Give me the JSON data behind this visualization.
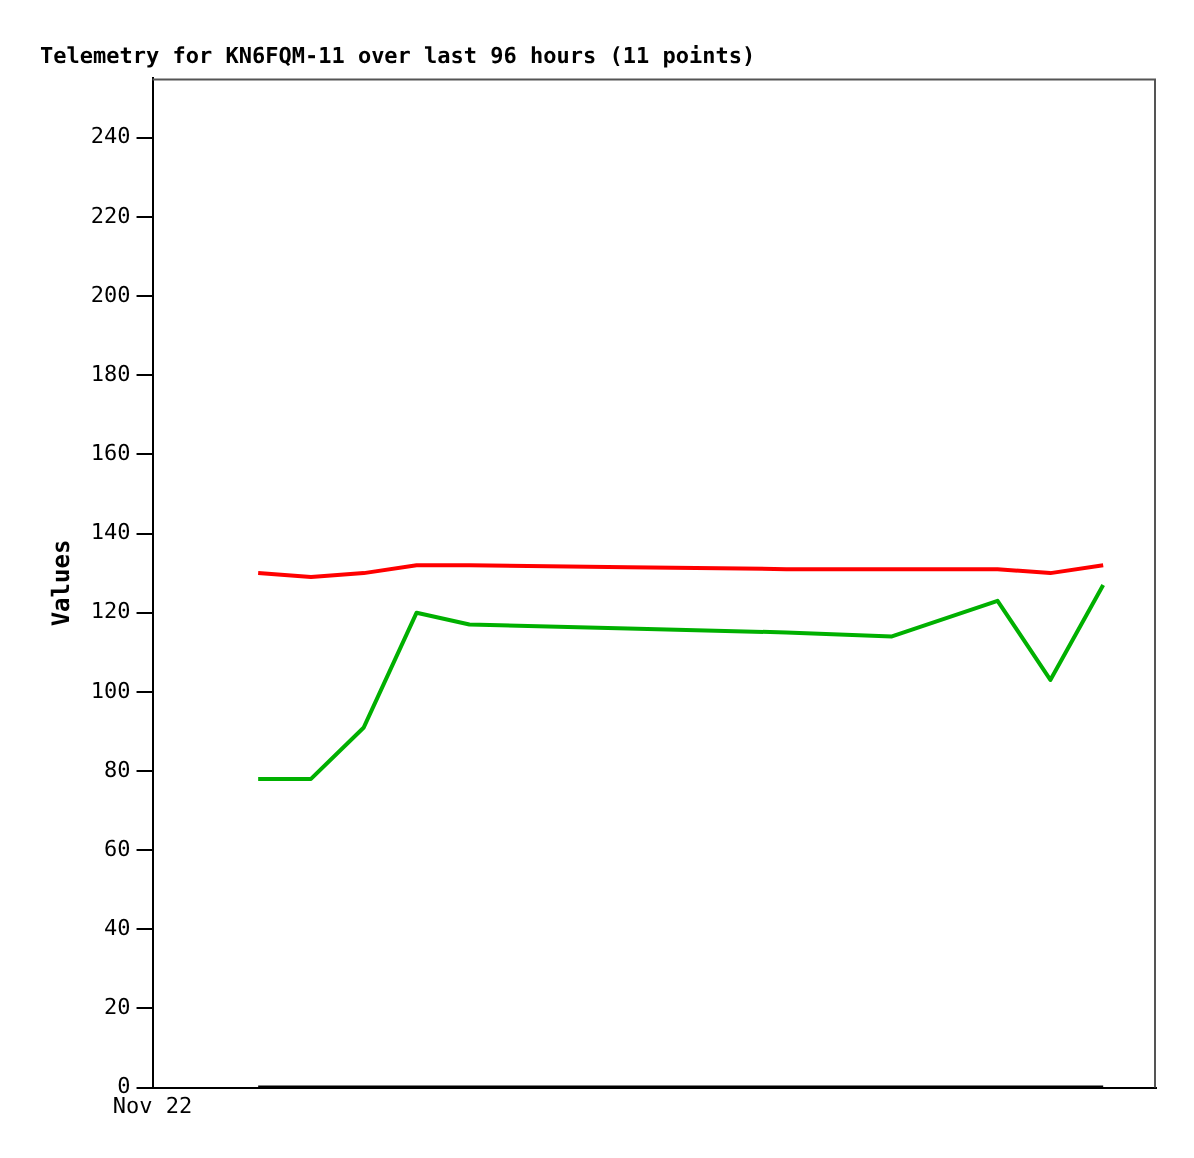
{
  "chart_data": {
    "type": "line",
    "title": "Telemetry for KN6FQM-11 over last 96 hours (11 points)",
    "ylabel": "Values",
    "categories": [
      "Nov 22",
      null,
      null,
      null,
      null,
      null,
      null,
      null,
      null,
      null,
      null,
      null,
      null,
      null,
      null,
      null,
      null,
      null,
      null,
      null
    ],
    "series": [
      {
        "color": "#ff0000",
        "values": [
          null,
          null,
          130,
          129,
          130,
          132,
          132,
          null,
          null,
          131.5,
          null,
          null,
          131,
          null,
          131,
          null,
          131,
          130,
          132,
          null
        ]
      },
      {
        "color": "#00b000",
        "values": [
          null,
          null,
          78,
          78,
          91,
          120,
          117,
          null,
          null,
          116,
          null,
          null,
          115,
          null,
          114,
          null,
          123,
          103,
          127,
          null
        ]
      },
      {
        "color": "#000000",
        "values": [
          null,
          null,
          0,
          0,
          0,
          0,
          0,
          null,
          null,
          0,
          null,
          null,
          0,
          null,
          0,
          null,
          0,
          0,
          0,
          null
        ]
      }
    ],
    "ylim": [
      0,
      255
    ],
    "yticks": [
      0,
      20,
      40,
      60,
      80,
      100,
      120,
      140,
      160,
      180,
      200,
      220,
      240
    ],
    "grid": false,
    "legend": false,
    "marker": "none",
    "line_style": "solid"
  }
}
